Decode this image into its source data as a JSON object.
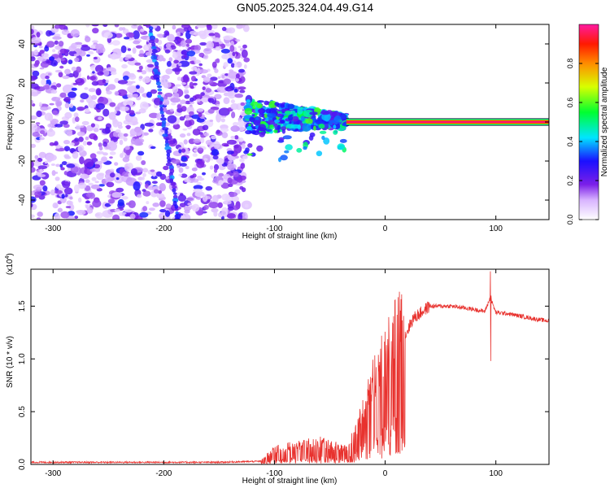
{
  "title": "GN05.2025.324.04.49.G14",
  "chart_data": [
    {
      "type": "heatmap",
      "xlabel": "Height of straight line (km)",
      "ylabel": "Frequency (Hz)",
      "xlim": [
        -320,
        148
      ],
      "ylim": [
        -50,
        50
      ],
      "xticks": [
        -300,
        -200,
        -100,
        0,
        100
      ],
      "yticks": [
        -40,
        -20,
        0,
        20,
        40
      ],
      "colorbar": {
        "label": "Normalized spectral amplitude",
        "range": [
          0,
          1
        ],
        "ticks": [
          0.0,
          0.2,
          0.4,
          0.6,
          0.8
        ],
        "tick_labels": [
          "0.0",
          "0.2",
          "0.4",
          "0.6",
          "0.8"
        ]
      },
      "features": [
        {
          "name": "noise region",
          "x_range": [
            -320,
            -125
          ],
          "y_range": [
            -50,
            50
          ],
          "amplitude": 0.1
        },
        {
          "name": "diagonal streak",
          "x": [
            -212,
            -187
          ],
          "y": [
            48,
            -50
          ],
          "amplitude": 0.2
        },
        {
          "name": "scattered signal",
          "x_range": [
            -125,
            -35
          ],
          "y_center": 3,
          "amplitude": 0.35
        },
        {
          "name": "carrier line",
          "x_range": [
            -35,
            148
          ],
          "y": 0,
          "amplitude": 1.0
        }
      ]
    },
    {
      "type": "line",
      "xlabel": "Height of straight line (km)",
      "ylabel": "SNR (10 * v/v)",
      "y_multiplier": "(x10",
      "y_multiplier_exp": "4",
      "y_multiplier_close": ")",
      "xlim": [
        -320,
        148
      ],
      "ylim": [
        0,
        1.85
      ],
      "xticks": [
        -300,
        -200,
        -100,
        0,
        100
      ],
      "yticks": [
        0.0,
        0.5,
        1.0,
        1.5
      ],
      "ytick_labels": [
        "0.0",
        "0.5",
        "1.0",
        "1.5"
      ],
      "series": [
        {
          "name": "SNR",
          "color": "#e8322e",
          "x": [
            -320,
            -250,
            -200,
            -150,
            -112,
            -100,
            -80,
            -60,
            -45,
            -35,
            -25,
            -15,
            -5,
            5,
            15,
            25,
            40,
            60,
            80,
            90,
            95,
            100,
            110,
            125,
            140,
            148
          ],
          "y": [
            0.02,
            0.02,
            0.02,
            0.02,
            0.03,
            0.12,
            0.15,
            0.18,
            0.15,
            0.12,
            0.3,
            0.6,
            0.78,
            0.98,
            1.15,
            1.38,
            1.5,
            1.5,
            1.47,
            1.45,
            1.58,
            1.44,
            1.43,
            1.4,
            1.37,
            1.36
          ]
        }
      ],
      "annotations": [
        {
          "name": "spike",
          "x": 95,
          "y_max": 1.83,
          "y_min": 0.98
        }
      ]
    }
  ]
}
